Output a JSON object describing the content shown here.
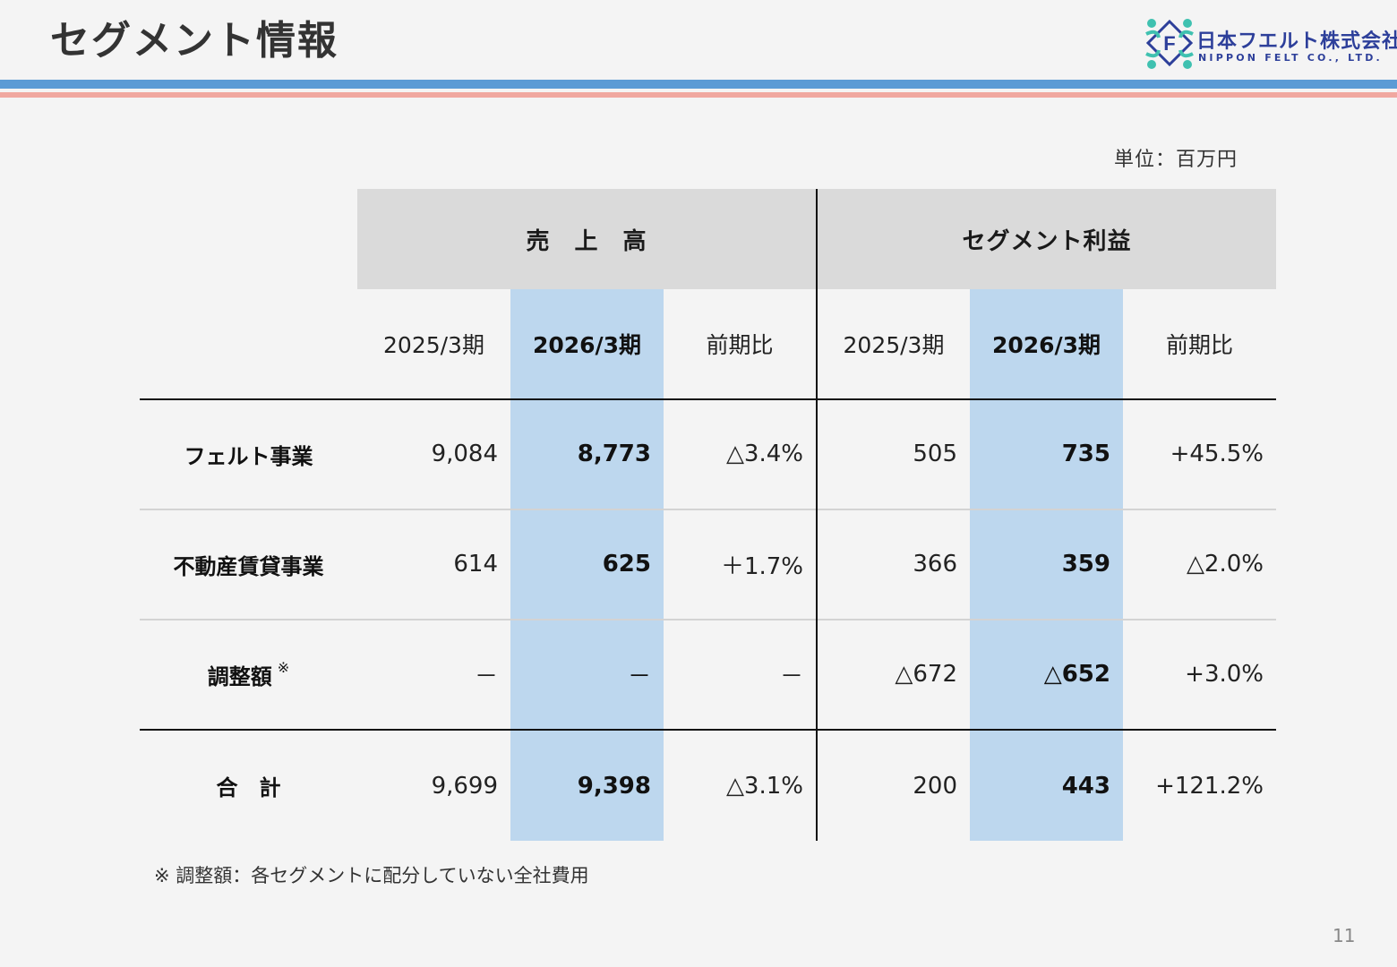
{
  "header": {
    "title": "セグメント情報",
    "logo": {
      "jp": "日本フエルト株式会社",
      "en": "NIPPON FELT CO., LTD.",
      "mark_letter": "F"
    }
  },
  "unit_label": "単位：百万円",
  "table": {
    "groups": [
      "売　上　高",
      "セグメント利益"
    ],
    "periods": [
      "2025/3期",
      "2026/3期",
      "前期比",
      "2025/3期",
      "2026/3期",
      "前期比"
    ],
    "rows": [
      {
        "label": "フェルト事業",
        "cells": [
          "9,084",
          "8,773",
          "△3.4%",
          "505",
          "735",
          "+45.5%"
        ]
      },
      {
        "label": "不動産賃貸事業",
        "cells": [
          "614",
          "625",
          "＋1.7%",
          "366",
          "359",
          "△2.0%"
        ]
      },
      {
        "label": "調整額",
        "mark": "※",
        "cells": [
          "－",
          "－",
          "－",
          "△672",
          "△652",
          "+3.0%"
        ]
      },
      {
        "label": "合　計",
        "cells": [
          "9,699",
          "9,398",
          "△3.1%",
          "200",
          "443",
          "+121.2%"
        ]
      }
    ]
  },
  "footnote": "※ 調整額：各セグメントに配分していない全社費用",
  "page_number": "11",
  "colors": {
    "highlight": "#bdd7ee",
    "header_gray": "#dadada",
    "band_blue": "#5b9bd5",
    "band_pink": "#f0a8a0"
  }
}
